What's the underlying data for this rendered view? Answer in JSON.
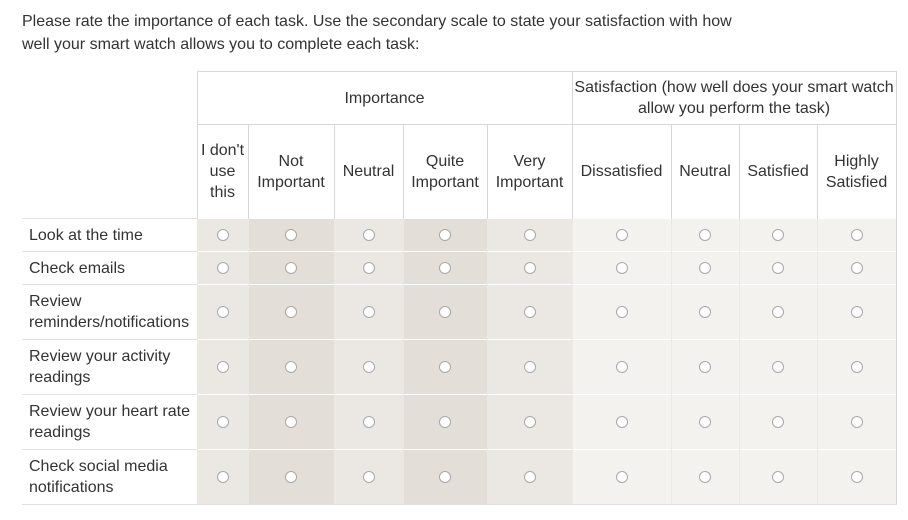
{
  "question": "Please rate the importance of each task. Use the secondary scale to state your satisfaction with how well your smart watch allows you to complete each task:",
  "groups": {
    "importance": "Importance",
    "satisfaction": "Satisfaction (how well does your smart watch allow you perform the task)"
  },
  "columns": {
    "imp_0": "I don't use this",
    "imp_1": "Not Important",
    "imp_2": "Neutral",
    "imp_3": "Quite Important",
    "imp_4": "Very Important",
    "sat_0": "Dissatisfied",
    "sat_1": "Neutral",
    "sat_2": "Satisfied",
    "sat_3": "Highly Satisfied"
  },
  "rows": [
    {
      "label": "Look at the time"
    },
    {
      "label": "Check emails"
    },
    {
      "label": "Review reminders/notifications"
    },
    {
      "label": "Review your activity readings"
    },
    {
      "label": "Review your heart rate readings"
    },
    {
      "label": "Check social media notifications"
    }
  ],
  "colors": {
    "importance_bg_a": "#ebe8e3",
    "importance_bg_b": "#e3dfd8",
    "satisfaction_bg": "#f3f2ef",
    "text": "#333333"
  }
}
